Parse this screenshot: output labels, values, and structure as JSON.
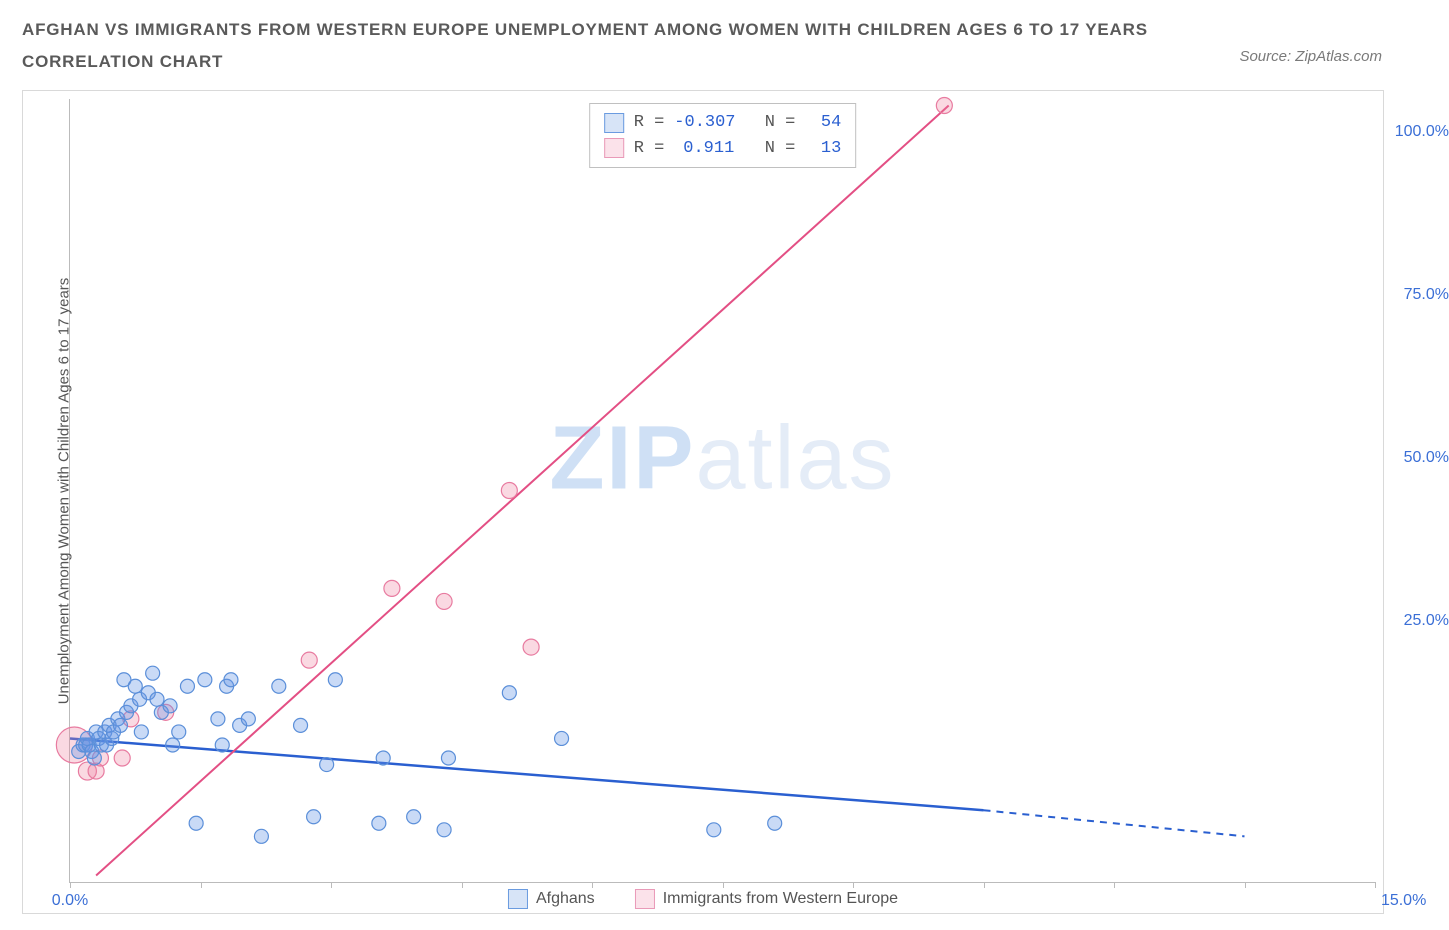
{
  "title_line1": "AFGHAN VS IMMIGRANTS FROM WESTERN EUROPE UNEMPLOYMENT AMONG WOMEN WITH CHILDREN AGES 6 TO 17 YEARS",
  "title_line2": "CORRELATION CHART",
  "source": "Source: ZipAtlas.com",
  "ylabel": "Unemployment Among Women with Children Ages 6 to 17 years",
  "watermark_zip": "ZIP",
  "watermark_rest": "atlas",
  "xlim": [
    0,
    15
  ],
  "ylim": [
    -15,
    105
  ],
  "xticks": [
    0,
    1.5,
    3,
    4.5,
    6,
    7.5,
    9,
    10.5,
    12,
    13.5,
    15
  ],
  "xtick_labels_shown": {
    "0": "0.0%",
    "15": "15.0%"
  },
  "ytick_labels": [
    {
      "v": 25,
      "t": "25.0%"
    },
    {
      "v": 50,
      "t": "50.0%"
    },
    {
      "v": 75,
      "t": "75.0%"
    },
    {
      "v": 100,
      "t": "100.0%"
    }
  ],
  "colors": {
    "blue_fill": "rgba(100,150,230,0.35)",
    "blue_stroke": "#5b8fd9",
    "blue_line": "#2a5fd0",
    "pink_fill": "rgba(240,130,160,0.3)",
    "pink_stroke": "#e87ba0",
    "pink_line": "#e34f84",
    "swatch_blue_fill": "#d7e4f7",
    "swatch_blue_border": "#6a9be0",
    "swatch_pink_fill": "#fbe2ea",
    "swatch_pink_border": "#e99ab8",
    "tick_label": "#3b6fd6"
  },
  "stats": {
    "row1": {
      "R": "-0.307",
      "N": "54"
    },
    "row2": {
      "R": "0.911",
      "N": "13"
    }
  },
  "legend": {
    "item1": "Afghans",
    "item2": "Immigrants from Western Europe"
  },
  "lines": {
    "blue": {
      "x1": 0,
      "y1": 7,
      "x2_solid": 10.5,
      "y2_solid": -4,
      "x2_dash": 13.5,
      "y2_dash": -8
    },
    "pink": {
      "x1": 0.3,
      "y1": -14,
      "x2": 10.1,
      "y2": 104
    }
  },
  "series_blue": [
    {
      "x": 0.1,
      "y": 5,
      "r": 7
    },
    {
      "x": 0.15,
      "y": 6,
      "r": 7
    },
    {
      "x": 0.18,
      "y": 6,
      "r": 7
    },
    {
      "x": 0.2,
      "y": 7,
      "r": 7
    },
    {
      "x": 0.22,
      "y": 6,
      "r": 7
    },
    {
      "x": 0.25,
      "y": 5,
      "r": 7
    },
    {
      "x": 0.28,
      "y": 4,
      "r": 7
    },
    {
      "x": 0.3,
      "y": 8,
      "r": 7
    },
    {
      "x": 0.33,
      "y": 7,
      "r": 7
    },
    {
      "x": 0.36,
      "y": 6,
      "r": 7
    },
    {
      "x": 0.4,
      "y": 8,
      "r": 7
    },
    {
      "x": 0.42,
      "y": 6,
      "r": 7
    },
    {
      "x": 0.45,
      "y": 9,
      "r": 7
    },
    {
      "x": 0.48,
      "y": 7,
      "r": 7
    },
    {
      "x": 0.5,
      "y": 8,
      "r": 7
    },
    {
      "x": 0.55,
      "y": 10,
      "r": 7
    },
    {
      "x": 0.58,
      "y": 9,
      "r": 7
    },
    {
      "x": 0.62,
      "y": 16,
      "r": 7
    },
    {
      "x": 0.65,
      "y": 11,
      "r": 7
    },
    {
      "x": 0.7,
      "y": 12,
      "r": 7
    },
    {
      "x": 0.75,
      "y": 15,
      "r": 7
    },
    {
      "x": 0.8,
      "y": 13,
      "r": 7
    },
    {
      "x": 0.82,
      "y": 8,
      "r": 7
    },
    {
      "x": 0.9,
      "y": 14,
      "r": 7
    },
    {
      "x": 0.95,
      "y": 17,
      "r": 7
    },
    {
      "x": 1.0,
      "y": 13,
      "r": 7
    },
    {
      "x": 1.05,
      "y": 11,
      "r": 7
    },
    {
      "x": 1.15,
      "y": 12,
      "r": 7
    },
    {
      "x": 1.18,
      "y": 6,
      "r": 7
    },
    {
      "x": 1.25,
      "y": 8,
      "r": 7
    },
    {
      "x": 1.35,
      "y": 15,
      "r": 7
    },
    {
      "x": 1.45,
      "y": -6,
      "r": 7
    },
    {
      "x": 1.55,
      "y": 16,
      "r": 7
    },
    {
      "x": 1.7,
      "y": 10,
      "r": 7
    },
    {
      "x": 1.75,
      "y": 6,
      "r": 7
    },
    {
      "x": 1.8,
      "y": 15,
      "r": 7
    },
    {
      "x": 1.85,
      "y": 16,
      "r": 7
    },
    {
      "x": 1.95,
      "y": 9,
      "r": 7
    },
    {
      "x": 2.05,
      "y": 10,
      "r": 7
    },
    {
      "x": 2.2,
      "y": -8,
      "r": 7
    },
    {
      "x": 2.4,
      "y": 15,
      "r": 7
    },
    {
      "x": 2.65,
      "y": 9,
      "r": 7
    },
    {
      "x": 2.8,
      "y": -5,
      "r": 7
    },
    {
      "x": 2.95,
      "y": 3,
      "r": 7
    },
    {
      "x": 3.05,
      "y": 16,
      "r": 7
    },
    {
      "x": 3.55,
      "y": -6,
      "r": 7
    },
    {
      "x": 3.6,
      "y": 4,
      "r": 7
    },
    {
      "x": 3.95,
      "y": -5,
      "r": 7
    },
    {
      "x": 4.3,
      "y": -7,
      "r": 7
    },
    {
      "x": 4.35,
      "y": 4,
      "r": 7
    },
    {
      "x": 5.05,
      "y": 14,
      "r": 7
    },
    {
      "x": 5.65,
      "y": 7,
      "r": 7
    },
    {
      "x": 7.4,
      "y": -7,
      "r": 7
    },
    {
      "x": 8.1,
      "y": -6,
      "r": 7
    }
  ],
  "series_pink": [
    {
      "x": 0.05,
      "y": 6,
      "r": 18
    },
    {
      "x": 0.2,
      "y": 2,
      "r": 9
    },
    {
      "x": 0.3,
      "y": 2,
      "r": 8
    },
    {
      "x": 0.35,
      "y": 4,
      "r": 8
    },
    {
      "x": 0.6,
      "y": 4,
      "r": 8
    },
    {
      "x": 0.7,
      "y": 10,
      "r": 8
    },
    {
      "x": 1.1,
      "y": 11,
      "r": 8
    },
    {
      "x": 2.75,
      "y": 19,
      "r": 8
    },
    {
      "x": 3.7,
      "y": 30,
      "r": 8
    },
    {
      "x": 4.3,
      "y": 28,
      "r": 8
    },
    {
      "x": 5.05,
      "y": 45,
      "r": 8
    },
    {
      "x": 5.3,
      "y": 21,
      "r": 8
    },
    {
      "x": 10.05,
      "y": 104,
      "r": 8
    }
  ]
}
